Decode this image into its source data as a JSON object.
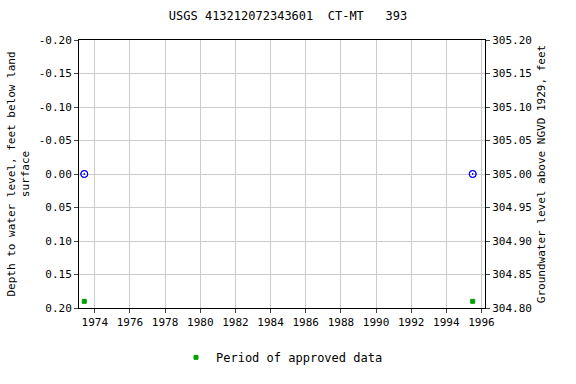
{
  "chart_data": {
    "type": "scatter",
    "title": "USGS 413212072343601  CT-MT   393",
    "y_label": "Depth to water level, feet below land\nsurface",
    "y2_label": "Groundwater level above NGVD 1929, feet",
    "x": [
      1973.4,
      1995.5
    ],
    "series": [
      {
        "values": [
          0.0,
          0.0
        ],
        "color": "#0000ff",
        "marker": "circle-open-dot"
      },
      {
        "values": [
          305.0,
          305.0
        ],
        "color": "#0000ff",
        "marker": "circle-open-dot",
        "axis": "y2"
      },
      {
        "name": "Period of approved data",
        "values": [
          0.19,
          0.19
        ],
        "color": "#00a000",
        "marker": "square"
      }
    ],
    "xlim": [
      1973.1,
      1996.2
    ],
    "xticks": [
      1974,
      1976,
      1978,
      1980,
      1982,
      1984,
      1986,
      1988,
      1990,
      1992,
      1994,
      1996
    ],
    "ylim": [
      0.2,
      -0.2
    ],
    "yticks": [
      {
        "value": -0.2,
        "label": "-0.20"
      },
      {
        "value": -0.15,
        "label": "-0.15"
      },
      {
        "value": -0.1,
        "label": "-0.10"
      },
      {
        "value": -0.05,
        "label": "-0.05"
      },
      {
        "value": 0,
        "label": "0.00"
      },
      {
        "value": 0.05,
        "label": "0.05"
      },
      {
        "value": 0.1,
        "label": "0.10"
      },
      {
        "value": 0.15,
        "label": "0.15"
      },
      {
        "value": 0.2,
        "label": "0.20"
      }
    ],
    "y2lim": [
      304.8,
      305.2
    ],
    "y2ticks": [
      {
        "value": 304.8,
        "label": "304.80"
      },
      {
        "value": 304.85,
        "label": "304.85"
      },
      {
        "value": 304.9,
        "label": "304.90"
      },
      {
        "value": 304.95,
        "label": "304.95"
      },
      {
        "value": 305,
        "label": "305.00"
      },
      {
        "value": 305.05,
        "label": "305.05"
      },
      {
        "value": 305.1,
        "label": "305.10"
      },
      {
        "value": 305.15,
        "label": "305.15"
      },
      {
        "value": 305.2,
        "label": "305.20"
      }
    ],
    "grid": true,
    "legend": "bottom"
  }
}
